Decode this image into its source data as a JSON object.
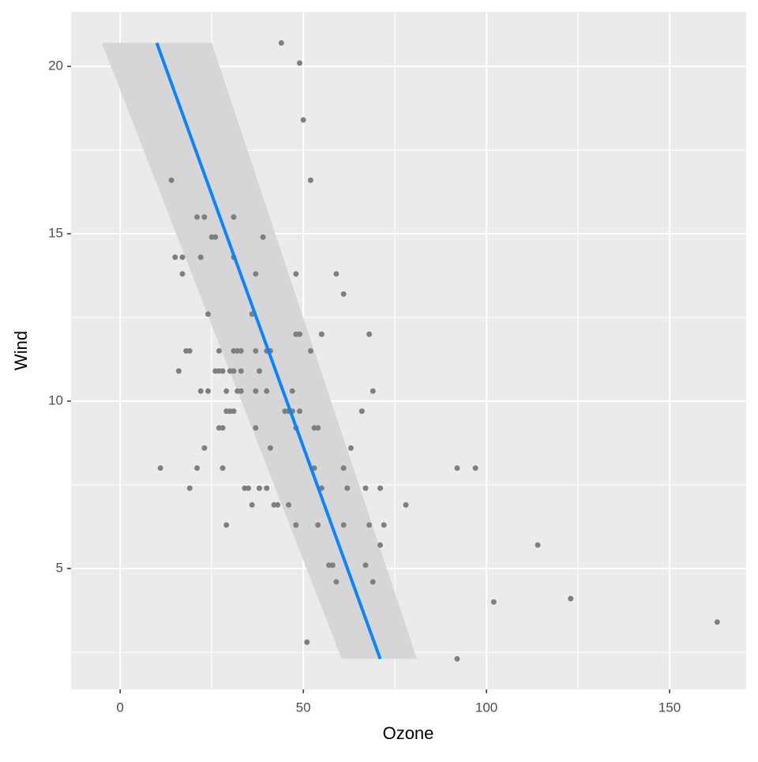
{
  "chart_data": {
    "type": "scatter",
    "x_label": "Ozone",
    "y_label": "Wind",
    "xlim": [
      -13.4,
      170.9
    ],
    "ylim": [
      1.39,
      21.63
    ],
    "xticks": [
      0,
      50,
      100,
      150
    ],
    "yticks": [
      5,
      10,
      15,
      20
    ],
    "x_minor_ticks": [
      25,
      75,
      125
    ],
    "y_minor_ticks": [
      2.5,
      7.5,
      12.5,
      17.5
    ],
    "grid": true,
    "series": [
      {
        "color": "#7f7f7f",
        "x": [
          44,
          49,
          50,
          52,
          14,
          21,
          23,
          31,
          25,
          26,
          39,
          15,
          17,
          22,
          31,
          17,
          37,
          48,
          59,
          61,
          24,
          36,
          48,
          49,
          55,
          68,
          18,
          19,
          27,
          31,
          32,
          33,
          37,
          40,
          41,
          52,
          16,
          26,
          27,
          28,
          30,
          31,
          33,
          38,
          69,
          22,
          24,
          29,
          32,
          33,
          37,
          40,
          47,
          29,
          30,
          31,
          45,
          46,
          47,
          49,
          66,
          27,
          28,
          37,
          48,
          53,
          54,
          23,
          41,
          63,
          11,
          21,
          28,
          53,
          61,
          92,
          97,
          19,
          34,
          35,
          38,
          40,
          55,
          62,
          67,
          71,
          36,
          42,
          43,
          46,
          78,
          29,
          48,
          54,
          61,
          68,
          72,
          71,
          114,
          57,
          58,
          67,
          59,
          69,
          123,
          102,
          163,
          51,
          92
        ],
        "values": [
          20.7,
          20.1,
          18.4,
          16.6,
          16.6,
          15.5,
          15.5,
          15.5,
          14.9,
          14.9,
          14.9,
          14.3,
          14.3,
          14.3,
          14.3,
          13.8,
          13.8,
          13.8,
          13.8,
          13.2,
          12.6,
          12.6,
          12.0,
          12.0,
          12.0,
          12.0,
          11.5,
          11.5,
          11.5,
          11.5,
          11.5,
          11.5,
          11.5,
          11.5,
          11.5,
          11.5,
          10.9,
          10.9,
          10.9,
          10.9,
          10.9,
          10.9,
          10.9,
          10.9,
          10.3,
          10.3,
          10.3,
          10.3,
          10.3,
          10.3,
          10.3,
          10.3,
          10.3,
          9.7,
          9.7,
          9.7,
          9.7,
          9.7,
          9.7,
          9.7,
          9.7,
          9.2,
          9.2,
          9.2,
          9.2,
          9.2,
          9.2,
          8.6,
          8.6,
          8.6,
          8.0,
          8.0,
          8.0,
          8.0,
          8.0,
          8.0,
          8.0,
          7.4,
          7.4,
          7.4,
          7.4,
          7.4,
          7.4,
          7.4,
          7.4,
          7.4,
          6.9,
          6.9,
          6.9,
          6.9,
          6.9,
          6.3,
          6.3,
          6.3,
          6.3,
          6.3,
          6.3,
          5.7,
          5.7,
          5.1,
          5.1,
          5.1,
          4.6,
          4.6,
          4.1,
          4.0,
          3.4,
          2.8,
          2.3
        ]
      }
    ],
    "smooth": {
      "color": "#0a84ff",
      "band_color": "#d6d6d6",
      "y": [
        20.7,
        2.3
      ],
      "x": [
        10,
        71
      ],
      "xmin": [
        -5,
        60.5
      ],
      "xmax": [
        25,
        81
      ]
    }
  }
}
